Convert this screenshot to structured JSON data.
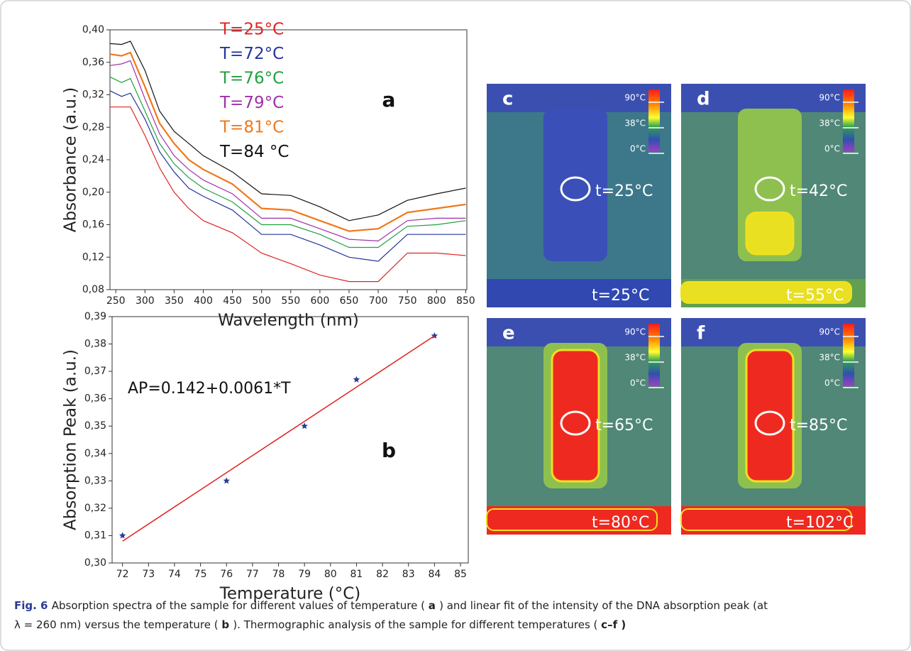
{
  "chart_data": [
    {
      "type": "line",
      "x_label": "Wavelength (nm)",
      "y_label": "Absorbance (a.u.)",
      "panel_label": "a",
      "x": [
        240,
        260,
        275,
        300,
        325,
        350,
        375,
        400,
        450,
        500,
        550,
        600,
        650,
        700,
        750,
        800,
        850
      ],
      "series": [
        {
          "name": "T=25°C",
          "color": "#e02424",
          "values": [
            0.305,
            0.305,
            0.305,
            0.27,
            0.23,
            0.2,
            0.18,
            0.165,
            0.15,
            0.125,
            0.112,
            0.098,
            0.09,
            0.09,
            0.125,
            0.125,
            0.122
          ]
        },
        {
          "name": "T=72°C",
          "color": "#24349c",
          "values": [
            0.325,
            0.318,
            0.322,
            0.29,
            0.25,
            0.225,
            0.205,
            0.195,
            0.178,
            0.148,
            0.148,
            0.135,
            0.12,
            0.115,
            0.148,
            0.148,
            0.148
          ]
        },
        {
          "name": "T=76°C",
          "color": "#20a040",
          "values": [
            0.342,
            0.335,
            0.34,
            0.3,
            0.26,
            0.235,
            0.218,
            0.205,
            0.188,
            0.16,
            0.16,
            0.148,
            0.132,
            0.132,
            0.158,
            0.16,
            0.165
          ]
        },
        {
          "name": "T=79°C",
          "color": "#a030a8",
          "values": [
            0.356,
            0.358,
            0.362,
            0.315,
            0.272,
            0.245,
            0.228,
            0.215,
            0.198,
            0.168,
            0.168,
            0.155,
            0.142,
            0.14,
            0.165,
            0.168,
            0.168
          ]
        },
        {
          "name": "T=81°C",
          "color": "#f07818",
          "values": [
            0.37,
            0.368,
            0.372,
            0.33,
            0.285,
            0.26,
            0.24,
            0.228,
            0.21,
            0.18,
            0.178,
            0.165,
            0.152,
            0.155,
            0.175,
            0.18,
            0.185
          ]
        },
        {
          "name": "T=84 °C",
          "color": "#111111",
          "values": [
            0.383,
            0.382,
            0.386,
            0.35,
            0.3,
            0.275,
            0.26,
            0.245,
            0.225,
            0.198,
            0.196,
            0.182,
            0.165,
            0.172,
            0.19,
            0.198,
            0.205
          ]
        }
      ],
      "xlim": [
        240,
        852
      ],
      "xticks": [
        250,
        300,
        350,
        400,
        450,
        500,
        550,
        600,
        650,
        700,
        750,
        800,
        850
      ],
      "ylim": [
        0.08,
        0.4
      ],
      "yticks": [
        {
          "value": 0.08,
          "label": "0,08"
        },
        {
          "value": 0.12,
          "label": "0,12"
        },
        {
          "value": 0.16,
          "label": "0,16"
        },
        {
          "value": 0.2,
          "label": "0,20"
        },
        {
          "value": 0.24,
          "label": "0,24"
        },
        {
          "value": 0.28,
          "label": "0,28"
        },
        {
          "value": 0.32,
          "label": "0,32"
        },
        {
          "value": 0.36,
          "label": "0,36"
        },
        {
          "value": 0.4,
          "label": "0,40"
        }
      ]
    },
    {
      "type": "scatter",
      "x_label": "Temperature (°C)",
      "y_label": "Absorption Peak (a.u.)",
      "panel_label": "b",
      "annotation": "AP=0.142+0.0061*T",
      "series": [
        {
          "color": "#2a3a94",
          "x": [
            72,
            76,
            79,
            81,
            84
          ],
          "values": [
            0.31,
            0.33,
            0.35,
            0.367,
            0.383
          ]
        },
        {
          "type": "line",
          "color": "#e02020",
          "x": [
            72,
            84
          ],
          "values": [
            0.308,
            0.383
          ]
        }
      ],
      "xlim": [
        71.6,
        85.3
      ],
      "xticks": [
        72,
        73,
        74,
        75,
        76,
        77,
        78,
        79,
        80,
        81,
        82,
        83,
        84,
        85
      ],
      "ylim": [
        0.3,
        0.39
      ],
      "yticks": [
        {
          "value": 0.3,
          "label": "0,30"
        },
        {
          "value": 0.31,
          "label": "0,31"
        },
        {
          "value": 0.32,
          "label": "0,32"
        },
        {
          "value": 0.33,
          "label": "0,33"
        },
        {
          "value": 0.34,
          "label": "0,34"
        },
        {
          "value": 0.35,
          "label": "0,35"
        },
        {
          "value": 0.36,
          "label": "0,36"
        },
        {
          "value": 0.37,
          "label": "0,37"
        },
        {
          "value": 0.38,
          "label": "0,38"
        },
        {
          "value": 0.39,
          "label": "0,39"
        }
      ]
    }
  ],
  "scale_labels": [
    "90°C",
    "38°C",
    "0°C"
  ],
  "thermal_panels": [
    {
      "label": "c",
      "readings": [
        "t=25°C",
        "t=25°C"
      ]
    },
    {
      "label": "d",
      "readings": [
        "t=42°C",
        "t=55°C"
      ]
    },
    {
      "label": "e",
      "readings": [
        "t=65°C",
        "t=80°C"
      ]
    },
    {
      "label": "f",
      "readings": [
        "t=85°C",
        "t=102°C"
      ]
    }
  ],
  "caption": {
    "label": "Fig. 6",
    "parts": [
      "Absorption spectra of the sample for different values of temperature (",
      "a",
      ") and linear fit of the intensity of the DNA absorption peak (at",
      "λ = 260 nm) versus the temperature (",
      "b",
      "). Thermographic analysis of the sample for different temperatures (",
      "c–f",
      ")"
    ]
  }
}
